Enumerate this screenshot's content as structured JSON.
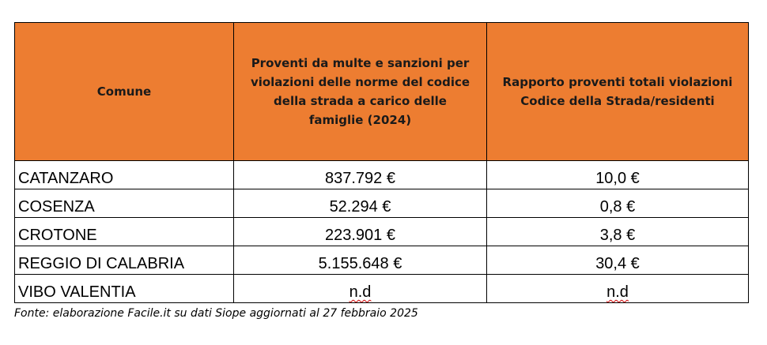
{
  "table": {
    "header": [
      "Comune",
      "Proventi da multe e sanzioni per violazioni delle norme del codice della strada a carico delle famiglie (2024)",
      "Rapporto proventi totali violazioni Codice della Strada/residenti"
    ],
    "rows": [
      [
        "CATANZARO",
        "837.792 €",
        "10,0 €"
      ],
      [
        "COSENZA",
        "52.294 €",
        "0,8 €"
      ],
      [
        "CROTONE",
        "223.901 €",
        "3,8 €"
      ],
      [
        "REGGIO DI CALABRIA",
        "5.155.648 €",
        "30,4 €"
      ],
      [
        "VIBO VALENTIA",
        "n.d",
        "n.d"
      ]
    ]
  },
  "footer": "Fonte: elaborazione Facile.it su dati Siope aggiornati al 27 febbraio 2025"
}
